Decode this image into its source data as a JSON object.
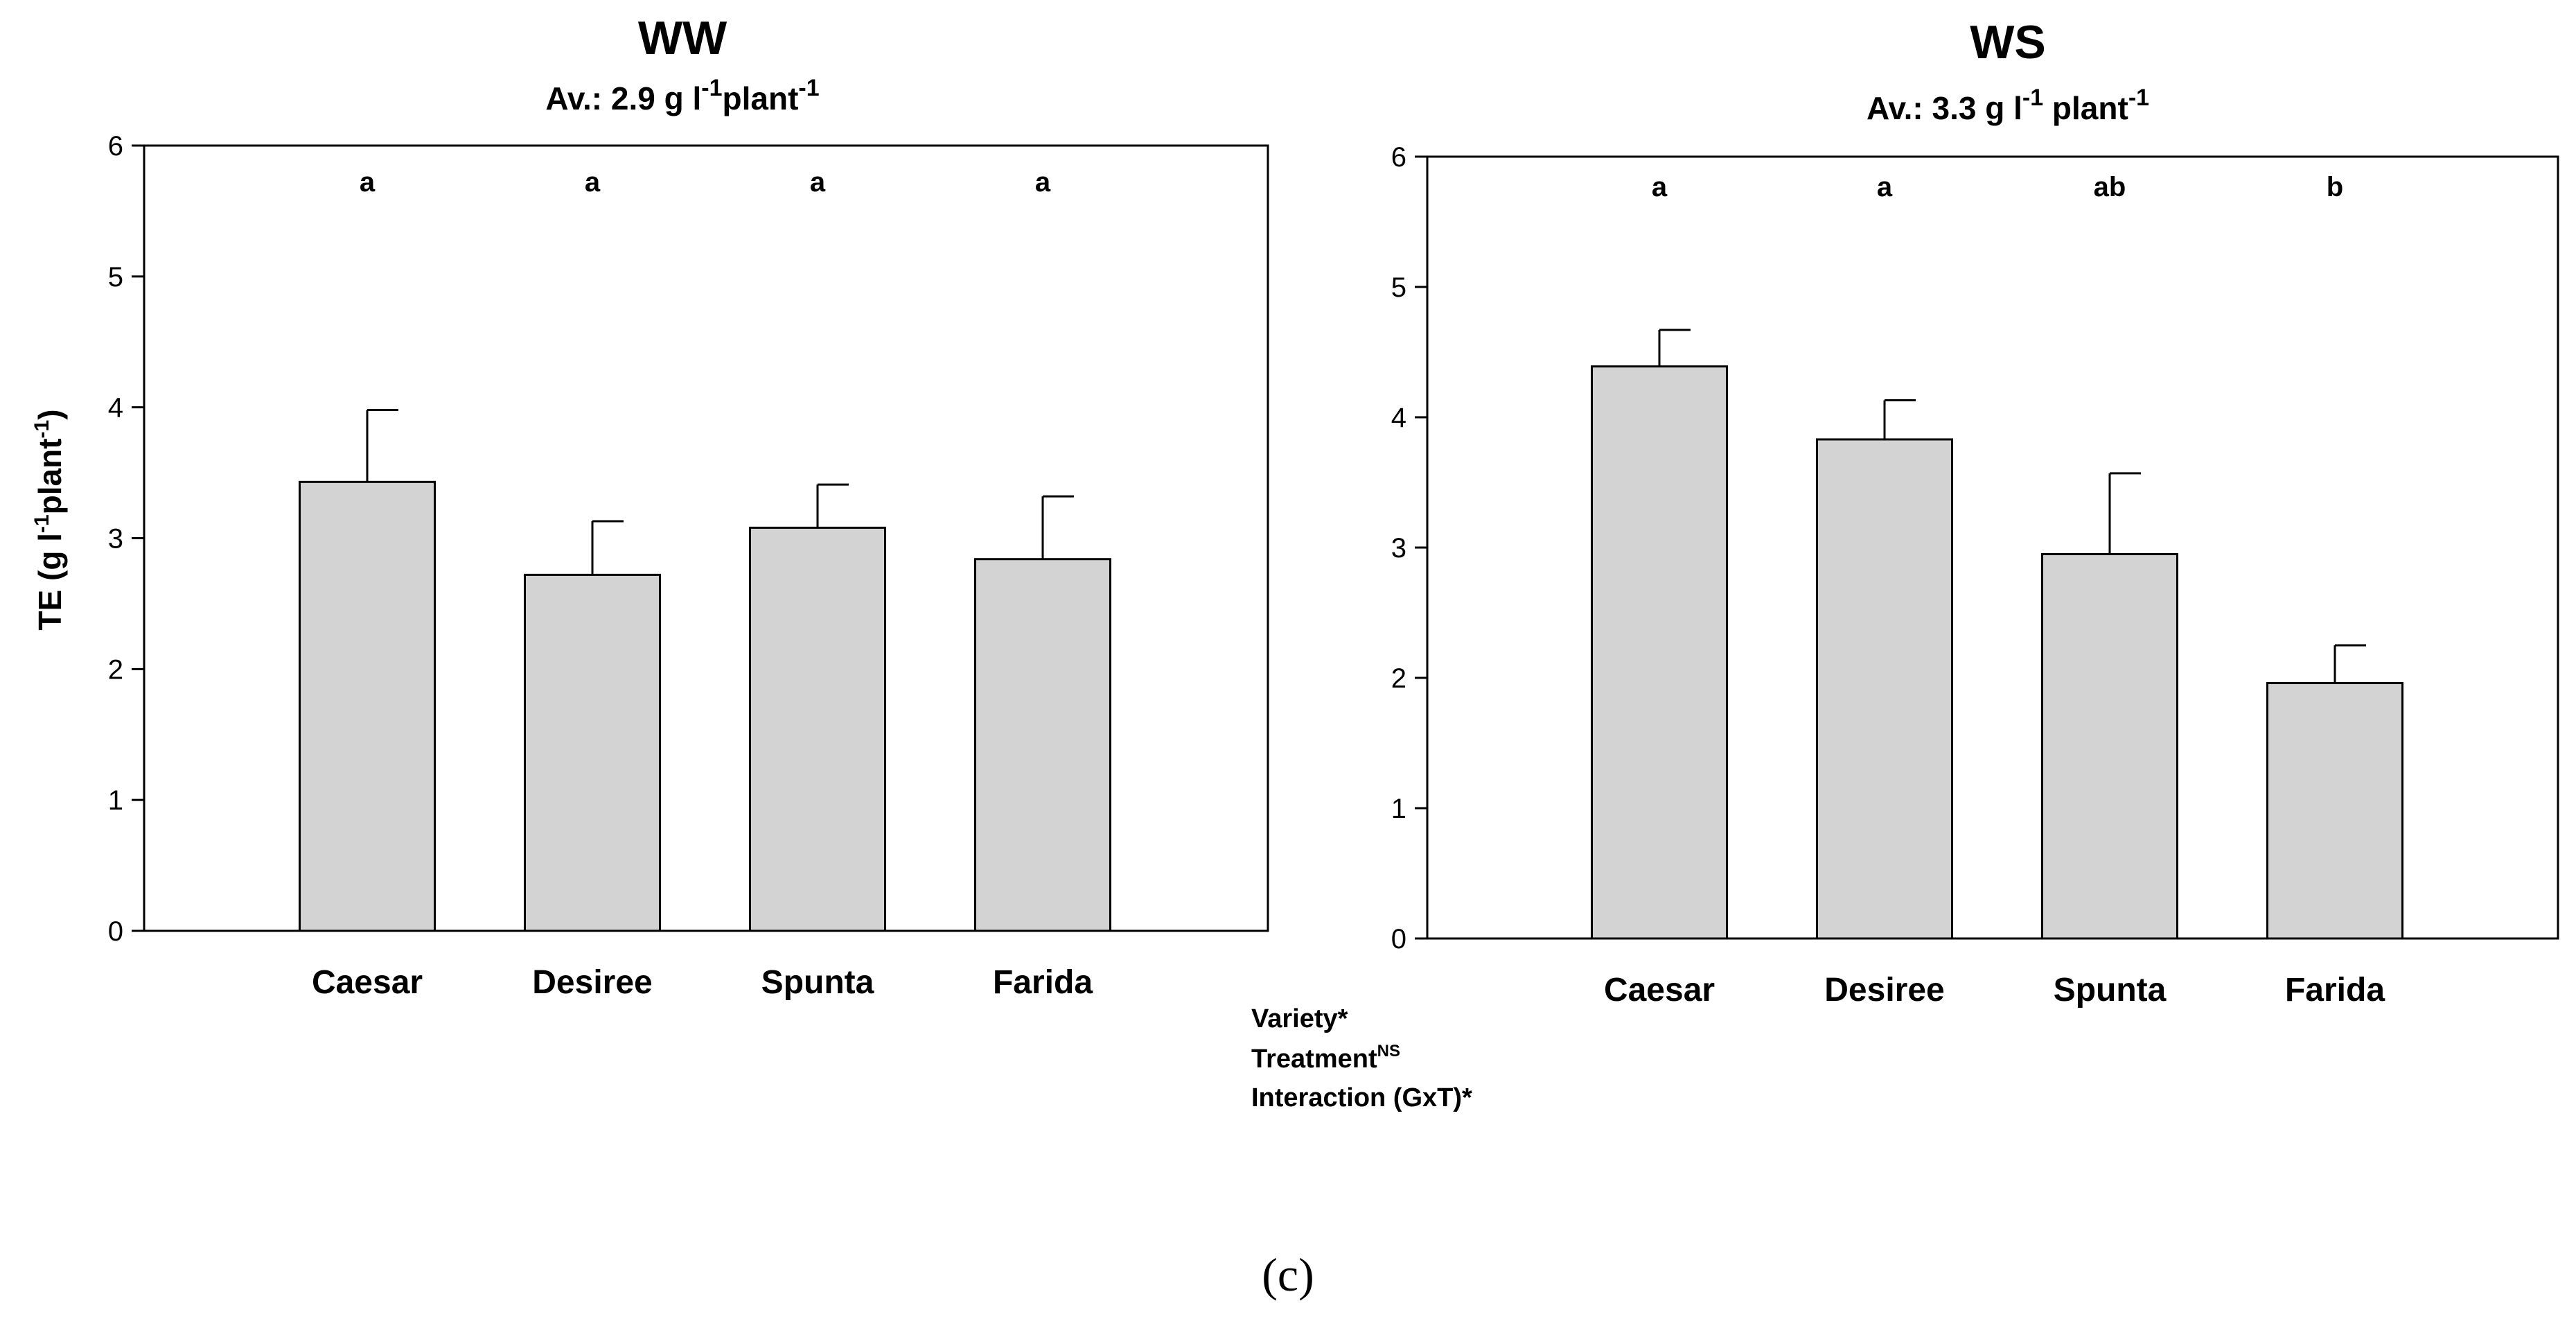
{
  "chart_data": [
    {
      "type": "bar",
      "title": "WW",
      "subtitle": {
        "prefix": "Av.:  2.9 g  l",
        "sup1": "-1",
        "mid": "plant",
        "sup2": "-1"
      },
      "ylabel": {
        "prefix": "TE (g l",
        "sup1": "-1",
        "mid": "plant",
        "sup2": "-1",
        "suffix": ")"
      },
      "xlabel": "",
      "ylim": [
        0,
        6
      ],
      "yticks": [
        0,
        1,
        2,
        3,
        4,
        5,
        6
      ],
      "categories": [
        "Caesar",
        "Desiree",
        "Spunta",
        "Farida"
      ],
      "values": [
        3.43,
        2.72,
        3.08,
        2.84
      ],
      "errors": [
        0.55,
        0.41,
        0.33,
        0.48
      ],
      "letters": [
        "a",
        "a",
        "a",
        "a"
      ],
      "bar_color": "#d3d3d3"
    },
    {
      "type": "bar",
      "title": "WS",
      "subtitle": {
        "prefix": "Av.: 3.3 g  l",
        "sup1": "-1",
        "mid": " plant",
        "sup2": "-1"
      },
      "xlabel": "",
      "ylim": [
        0,
        6
      ],
      "yticks": [
        0,
        1,
        2,
        3,
        4,
        5,
        6
      ],
      "categories": [
        "Caesar",
        "Desiree",
        "Spunta",
        "Farida"
      ],
      "values": [
        4.39,
        3.83,
        2.95,
        1.96
      ],
      "errors": [
        0.28,
        0.3,
        0.62,
        0.29
      ],
      "letters": [
        "a",
        "a",
        "ab",
        "b"
      ],
      "bar_color": "#d3d3d3"
    }
  ],
  "stats": {
    "line1": "Variety*",
    "line2_text": "Treatment",
    "line2_sup": "NS",
    "line3": "Interaction (GxT)*"
  },
  "panel_label": "(c)"
}
